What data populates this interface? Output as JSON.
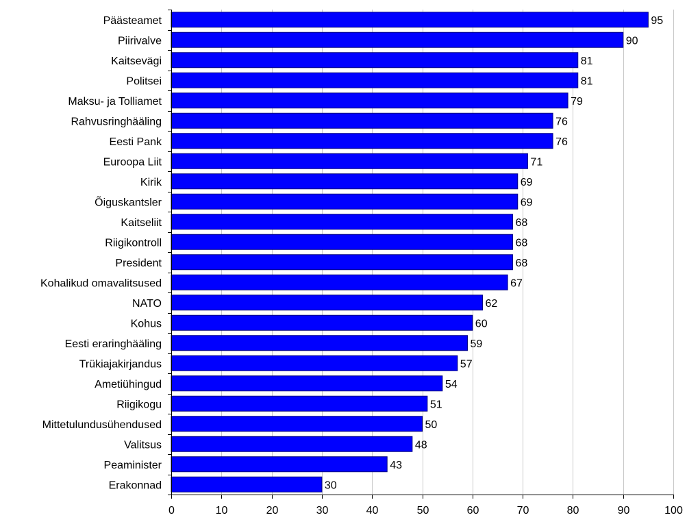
{
  "chart_data": {
    "type": "bar",
    "orientation": "horizontal",
    "categories": [
      "Päästeamet",
      "Piirivalve",
      "Kaitsevägi",
      "Politsei",
      "Maksu- ja Tolliamet",
      "Rahvusringhääling",
      "Eesti Pank",
      "Euroopa Liit",
      "Kirik",
      "Õiguskantsler",
      "Kaitseliit",
      "Riigikontroll",
      "President",
      "Kohalikud omavalitsused",
      "NATO",
      "Kohus",
      "Eesti eraringhääling",
      "Trükiajakirjandus",
      "Ametiühingud",
      "Riigikogu",
      "Mittetulundusühendused",
      "Valitsus",
      "Peaminister",
      "Erakonnad"
    ],
    "values": [
      95,
      90,
      81,
      81,
      79,
      76,
      76,
      71,
      69,
      69,
      68,
      68,
      68,
      67,
      62,
      60,
      59,
      57,
      54,
      51,
      50,
      48,
      43,
      30
    ],
    "data_labels": [
      "95",
      "90",
      "81",
      "81",
      "79",
      "76",
      "76",
      "71",
      "69",
      "69",
      "68",
      "68",
      "68",
      "67",
      "62",
      "60",
      "59",
      "57",
      "54",
      "51",
      "50",
      "48",
      "43",
      "30"
    ],
    "xlim": [
      0,
      100
    ],
    "xticks": [
      "0",
      "10",
      "20",
      "30",
      "40",
      "50",
      "60",
      "70",
      "80",
      "90",
      "100"
    ],
    "xtick_values": [
      0,
      10,
      20,
      30,
      40,
      50,
      60,
      70,
      80,
      90,
      100
    ],
    "title": "",
    "xlabel": "",
    "ylabel": "",
    "grid": "vertical",
    "legend": "none",
    "bar_color": "#0000FF",
    "bar_edge_color": "#000080",
    "grid_color": "#C8C8C8"
  }
}
